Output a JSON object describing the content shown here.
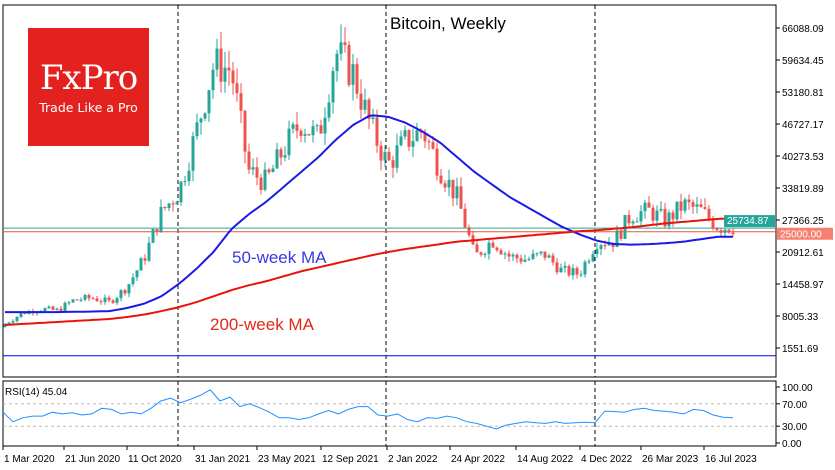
{
  "chart_data": {
    "type": "candlestick",
    "title": "Bitcoin, Weekly",
    "brand": {
      "name": "FxPro",
      "tagline": "Trade Like a Pro"
    },
    "annotations": {
      "ma50": "50-week MA",
      "ma200": "200-week MA"
    },
    "price_ticks": [
      "66088.09",
      "59634.45",
      "53180.81",
      "46727.17",
      "40273.53",
      "33819.89",
      "27366.25",
      "20912.61",
      "14458.97",
      "8005.33",
      "1551.69"
    ],
    "price_range": [
      1551.69,
      66088.09
    ],
    "current_price_label": "25734.87",
    "level_label": "25000.00",
    "levels": {
      "current": 25734.87,
      "horizontal_red": 25000,
      "horizontal_blue": 0
    },
    "x_ticks": [
      "1 Mar 2020",
      "21 Jun 2020",
      "11 Oct 2020",
      "31 Jan 2021",
      "23 May 2021",
      "12 Sep 2021",
      "2 Jan 2022",
      "24 Apr 2022",
      "14 Aug 2022",
      "4 Dec 2022",
      "26 Mar 2023",
      "16 Jul 2023"
    ],
    "monthly_closes": [
      6400,
      8600,
      9450,
      9130,
      11300,
      11650,
      10780,
      13800,
      19700,
      29000,
      33100,
      45200,
      58800,
      57700,
      37300,
      35000,
      41500,
      47100,
      43800,
      61300,
      57000,
      46300,
      38500,
      43200,
      45500,
      37700,
      31800,
      19900,
      23300,
      20000,
      19400,
      20500,
      17100,
      16500,
      23100,
      23100,
      28500,
      29200,
      27200,
      30500,
      29200,
      26000
    ],
    "ma50_monthly": [
      8800,
      8800,
      8800,
      8800,
      8850,
      8900,
      9000,
      9600,
      10500,
      12000,
      14500,
      17500,
      21000,
      25500,
      28500,
      31000,
      34000,
      37000,
      40000,
      43500,
      46500,
      48500,
      48200,
      47000,
      45200,
      43000,
      40000,
      37000,
      34500,
      32000,
      30000,
      28000,
      26000,
      24500,
      23200,
      22500,
      22400,
      22500,
      22700,
      23000,
      23500,
      24000
    ],
    "ma200_monthly": [
      6200,
      6400,
      6600,
      6800,
      7000,
      7200,
      7400,
      7800,
      8300,
      9000,
      9800,
      10800,
      12000,
      13200,
      14200,
      15000,
      16000,
      17000,
      17800,
      18600,
      19400,
      20200,
      20900,
      21500,
      22000,
      22500,
      23000,
      23300,
      23600,
      23900,
      24200,
      24500,
      24800,
      25100,
      25300,
      25600,
      25900,
      26300,
      26700,
      27000,
      27300,
      27600
    ],
    "rsi": {
      "label": "RSI(14) 45.04",
      "value": 45.04,
      "ticks": [
        "100.00",
        "70.00",
        "30.00",
        "0.00"
      ],
      "levels": [
        70,
        30
      ],
      "values": [
        55,
        38,
        45,
        48,
        48,
        55,
        52,
        54,
        50,
        52,
        62,
        60,
        52,
        55,
        52,
        62,
        75,
        80,
        72,
        78,
        85,
        95,
        75,
        82,
        65,
        70,
        63,
        55,
        45,
        45,
        42,
        45,
        52,
        58,
        52,
        60,
        65,
        65,
        50,
        48,
        52,
        42,
        38,
        45,
        44,
        48,
        45,
        38,
        35,
        30,
        25,
        32,
        35,
        38,
        36,
        35,
        38,
        35,
        36,
        37,
        36,
        57,
        56,
        55,
        60,
        62,
        58,
        57,
        55,
        52,
        60,
        58,
        50,
        46,
        45
      ]
    }
  }
}
